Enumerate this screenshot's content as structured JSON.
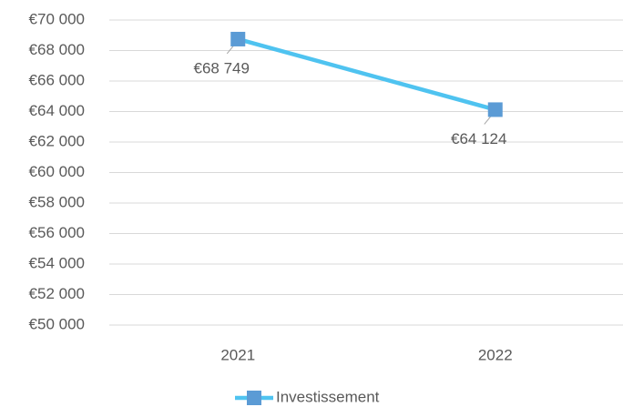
{
  "chart_data": {
    "type": "line",
    "categories": [
      "2021",
      "2022"
    ],
    "series": [
      {
        "name": "Investissement",
        "line_color": "#4fc3f0",
        "marker_color": "#5b9bd5",
        "values": [
          68749,
          64124
        ],
        "value_labels": [
          "€68 749",
          "€64 124"
        ]
      }
    ],
    "ylim": [
      50000,
      70000
    ],
    "yticks": [
      {
        "value": 50000,
        "label": "€50 000"
      },
      {
        "value": 52000,
        "label": "€52 000"
      },
      {
        "value": 54000,
        "label": "€54 000"
      },
      {
        "value": 56000,
        "label": "€56 000"
      },
      {
        "value": 58000,
        "label": "€58 000"
      },
      {
        "value": 60000,
        "label": "€60 000"
      },
      {
        "value": 62000,
        "label": "€62 000"
      },
      {
        "value": 64000,
        "label": "€64 000"
      },
      {
        "value": 66000,
        "label": "€66 000"
      },
      {
        "value": 68000,
        "label": "€68 000"
      },
      {
        "value": 70000,
        "label": "€70 000"
      }
    ],
    "grid": true,
    "legend": "bottom"
  }
}
